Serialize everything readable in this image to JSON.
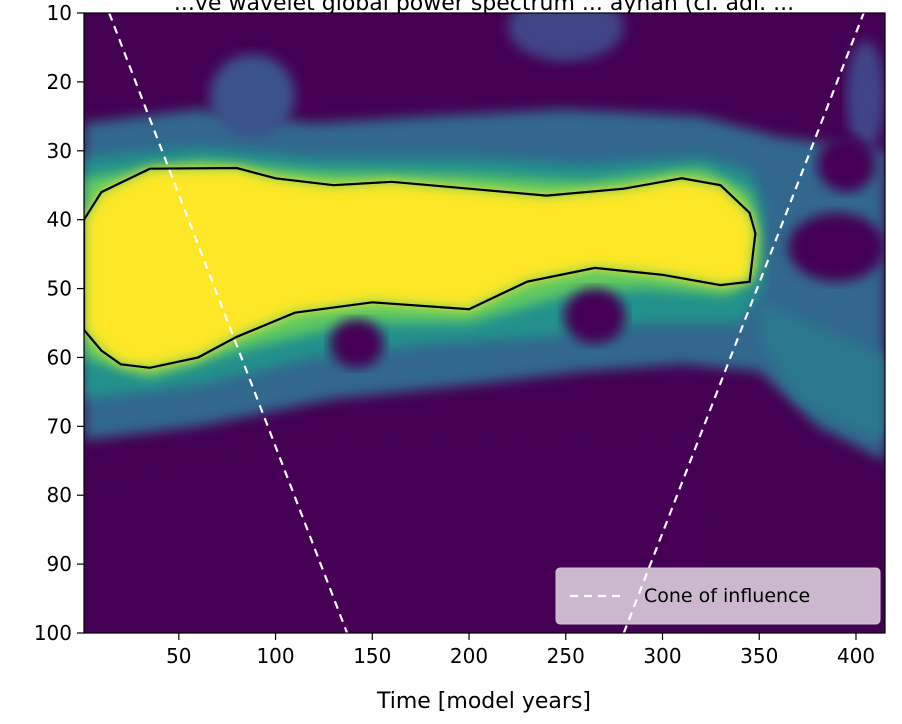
{
  "chart_data": {
    "type": "heatmap",
    "title": "...ve wavelet global power spectrum ... ayhan (cl. adl. ...",
    "xlabel": "Time [model years]",
    "ylabel": "",
    "xlim": [
      1,
      415
    ],
    "ylim": [
      100,
      10
    ],
    "x_ticks": [
      50,
      100,
      150,
      200,
      250,
      300,
      350,
      400
    ],
    "y_ticks": [
      10,
      20,
      30,
      40,
      50,
      60,
      70,
      80,
      90,
      100
    ],
    "y_inverted": true,
    "colormap": "viridis",
    "grid": false,
    "legend_placement": "lower-right",
    "significance_contour": {
      "color": "#000000",
      "upper": [
        [
          1,
          40
        ],
        [
          10,
          36
        ],
        [
          35,
          32.6
        ],
        [
          80,
          32.5
        ],
        [
          100,
          34
        ],
        [
          130,
          35
        ],
        [
          160,
          34.5
        ],
        [
          200,
          35.5
        ],
        [
          240,
          36.5
        ],
        [
          280,
          35.5
        ],
        [
          310,
          34
        ],
        [
          330,
          35
        ],
        [
          345,
          39
        ],
        [
          348,
          42
        ]
      ],
      "lower": [
        [
          348,
          42
        ],
        [
          345,
          49
        ],
        [
          330,
          49.5
        ],
        [
          300,
          48
        ],
        [
          265,
          47
        ],
        [
          230,
          49
        ],
        [
          200,
          53
        ],
        [
          150,
          52
        ],
        [
          110,
          53.5
        ],
        [
          80,
          57
        ],
        [
          60,
          60
        ],
        [
          35,
          61.5
        ],
        [
          20,
          61
        ],
        [
          10,
          59
        ],
        [
          1,
          56
        ]
      ]
    },
    "cone_of_influence": {
      "name": "Cone of influence",
      "color": "#ffffff",
      "style": "dashed",
      "left": [
        [
          14,
          10
        ],
        [
          137,
          100
        ]
      ],
      "right": [
        [
          280,
          100
        ],
        [
          404,
          10
        ]
      ]
    },
    "regions": [
      {
        "kind": "background",
        "color": "#440154"
      },
      {
        "kind": "band",
        "level": 0.45,
        "color": "#31688e",
        "upper": [
          [
            1,
            26
          ],
          [
            60,
            24
          ],
          [
            120,
            26
          ],
          [
            180,
            25
          ],
          [
            250,
            24
          ],
          [
            320,
            25
          ],
          [
            360,
            28
          ],
          [
            415,
            30
          ]
        ],
        "lower": [
          [
            415,
            75
          ],
          [
            380,
            70
          ],
          [
            350,
            62
          ],
          [
            310,
            61
          ],
          [
            260,
            62
          ],
          [
            200,
            64
          ],
          [
            130,
            66
          ],
          [
            60,
            70
          ],
          [
            1,
            72
          ]
        ]
      },
      {
        "kind": "band",
        "level": 0.6,
        "color": "#21918c",
        "upper": [
          [
            1,
            31
          ],
          [
            60,
            29.5
          ],
          [
            120,
            31
          ],
          [
            200,
            31
          ],
          [
            260,
            32
          ],
          [
            320,
            31
          ],
          [
            345,
            33
          ],
          [
            352,
            38
          ]
        ],
        "lower": [
          [
            352,
            50
          ],
          [
            340,
            55
          ],
          [
            290,
            55
          ],
          [
            240,
            57
          ],
          [
            180,
            58
          ],
          [
            120,
            60
          ],
          [
            60,
            64
          ],
          [
            1,
            66
          ]
        ]
      },
      {
        "kind": "band",
        "level": 0.75,
        "color": "#5ec962",
        "upper": [
          [
            1,
            34
          ],
          [
            60,
            31.5
          ],
          [
            120,
            33
          ],
          [
            200,
            33.5
          ],
          [
            260,
            34.5
          ],
          [
            320,
            32.5
          ],
          [
            345,
            36
          ],
          [
            350,
            42
          ]
        ],
        "lower": [
          [
            350,
            47
          ],
          [
            335,
            51
          ],
          [
            290,
            50
          ],
          [
            250,
            51
          ],
          [
            200,
            55
          ],
          [
            140,
            55
          ],
          [
            80,
            59
          ],
          [
            35,
            63
          ],
          [
            1,
            60
          ]
        ]
      },
      {
        "kind": "band",
        "level": 0.95,
        "color": "#fde725",
        "upper": [
          [
            1,
            40
          ],
          [
            10,
            36
          ],
          [
            35,
            32.6
          ],
          [
            80,
            32.5
          ],
          [
            100,
            34
          ],
          [
            130,
            35
          ],
          [
            160,
            34.5
          ],
          [
            200,
            35.5
          ],
          [
            240,
            36.5
          ],
          [
            280,
            35.5
          ],
          [
            310,
            34
          ],
          [
            330,
            35
          ],
          [
            345,
            39
          ],
          [
            348,
            42
          ]
        ],
        "lower": [
          [
            348,
            42
          ],
          [
            345,
            49
          ],
          [
            330,
            49.5
          ],
          [
            300,
            48
          ],
          [
            265,
            47
          ],
          [
            230,
            49
          ],
          [
            200,
            53
          ],
          [
            150,
            52
          ],
          [
            110,
            53.5
          ],
          [
            80,
            57
          ],
          [
            60,
            60
          ],
          [
            35,
            61.5
          ],
          [
            20,
            61
          ],
          [
            10,
            59
          ],
          [
            1,
            56
          ]
        ]
      },
      {
        "kind": "band",
        "level": 0.55,
        "color": "#2a788e",
        "upper": [
          [
            350,
            52
          ],
          [
            375,
            55
          ],
          [
            415,
            60
          ]
        ],
        "lower": [
          [
            415,
            72
          ],
          [
            395,
            70
          ],
          [
            370,
            66
          ],
          [
            352,
            58
          ]
        ]
      },
      {
        "kind": "blob",
        "level": 0.35,
        "color": "#3b528b",
        "cx": 88,
        "cy": 22,
        "rx": 22,
        "ry": 6
      },
      {
        "kind": "blob",
        "level": 0.3,
        "color": "#414487",
        "cx": 250,
        "cy": 12,
        "rx": 30,
        "ry": 5
      },
      {
        "kind": "blob",
        "level": 0.3,
        "color": "#414487",
        "cx": 405,
        "cy": 22,
        "rx": 10,
        "ry": 8
      },
      {
        "kind": "blob",
        "level": 0.1,
        "color": "#440154",
        "cx": 142,
        "cy": 58,
        "rx": 14,
        "ry": 3.5
      },
      {
        "kind": "blob",
        "level": 0.1,
        "color": "#440154",
        "cx": 265,
        "cy": 54,
        "rx": 16,
        "ry": 4
      },
      {
        "kind": "blob",
        "level": 0.1,
        "color": "#440154",
        "cx": 390,
        "cy": 44,
        "rx": 25,
        "ry": 5
      },
      {
        "kind": "blob",
        "level": 0.1,
        "color": "#440154",
        "cx": 395,
        "cy": 32,
        "rx": 15,
        "ry": 4
      },
      {
        "kind": "low_region",
        "color": "#440154",
        "upper": [
          [
            1,
            82
          ],
          [
            40,
            78
          ],
          [
            100,
            75
          ],
          [
            180,
            74
          ],
          [
            260,
            73
          ],
          [
            310,
            74
          ],
          [
            330,
            100
          ]
        ]
      }
    ]
  },
  "legend": {
    "entries": [
      "Cone of influence"
    ]
  }
}
